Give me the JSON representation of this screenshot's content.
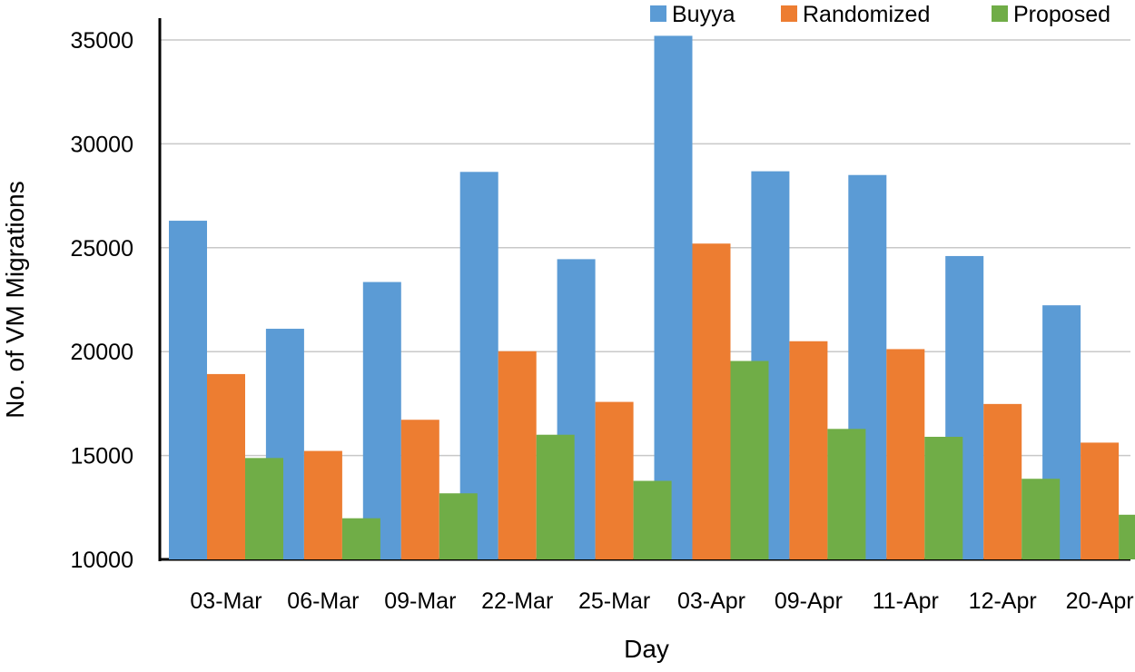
{
  "chart_data": {
    "type": "bar",
    "title": "",
    "xlabel": "Day",
    "ylabel": "No. of VM Migrations",
    "ylim": [
      10000,
      35000
    ],
    "yticks": [
      10000,
      15000,
      20000,
      25000,
      30000,
      35000
    ],
    "grid": true,
    "legend_position": "top-right",
    "categories": [
      "03-Mar",
      "06-Mar",
      "09-Mar",
      "22-Mar",
      "25-Mar",
      "03-Apr",
      "09-Apr",
      "11-Apr",
      "12-Apr",
      "20-Apr"
    ],
    "series": [
      {
        "name": "Buyya",
        "color": "#5b9bd5",
        "values": [
          26300,
          21100,
          23350,
          28650,
          24450,
          35200,
          28680,
          28500,
          24600,
          22230
        ]
      },
      {
        "name": "Randomized",
        "color": "#ed7d31",
        "values": [
          18920,
          15220,
          16720,
          20020,
          17580,
          25200,
          20500,
          20120,
          17480,
          15620
        ]
      },
      {
        "name": "Proposed",
        "color": "#70ad47",
        "values": [
          14880,
          11980,
          13180,
          16000,
          13780,
          19550,
          16280,
          15900,
          13880,
          12150
        ]
      }
    ]
  }
}
